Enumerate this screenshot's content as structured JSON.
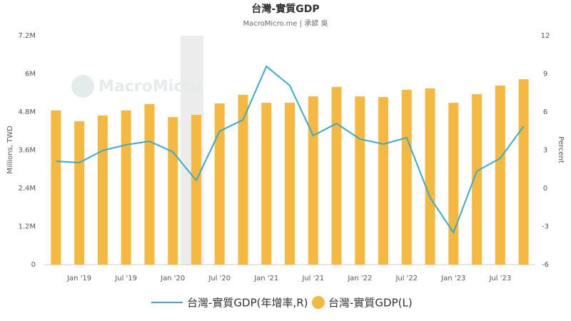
{
  "chart_data": {
    "type": "bar-line",
    "title": "台灣-實質GDP",
    "subtitle": "MacroMicro.me | 承諺 吳",
    "watermark": "MacroMicro",
    "ylabel": "Millions, TWD",
    "y2label": "Percent",
    "categories": [
      null,
      "Jan '19",
      null,
      "Jul '19",
      null,
      "Jan '20",
      null,
      "Jul '20",
      null,
      "Jan '21",
      null,
      "Jul '21",
      null,
      "Jan '22",
      null,
      "Jul '22",
      null,
      "Jan '23",
      null,
      "Jul '23",
      null
    ],
    "series": [
      {
        "name": "台灣-實質GDP(年增率,R)",
        "type": "line",
        "axis": "y2",
        "color": "#3aaacb",
        "values": [
          2.13,
          2.02,
          2.97,
          3.42,
          3.7,
          2.86,
          0.62,
          4.49,
          5.38,
          9.59,
          8.08,
          4.15,
          5.1,
          3.87,
          3.48,
          3.98,
          -0.73,
          -3.48,
          1.35,
          2.36,
          4.88
        ]
      },
      {
        "name": "台灣-實質GDP(L)",
        "type": "bar",
        "color": "#f5b942",
        "values": [
          4.85,
          4.51,
          4.69,
          4.85,
          5.05,
          4.64,
          4.71,
          5.07,
          5.34,
          5.09,
          5.09,
          5.29,
          5.59,
          5.29,
          5.27,
          5.5,
          5.54,
          5.09,
          5.36,
          5.63,
          5.83
        ]
      }
    ],
    "ylim": [
      0,
      7.2
    ],
    "yticks": [
      0,
      {
        "value": 1.2,
        "label": "1.2M"
      },
      {
        "value": 2.4,
        "label": "2.4M"
      },
      {
        "value": 3.6,
        "label": "3.6M"
      },
      {
        "value": 4.8,
        "label": "4.8M"
      },
      {
        "value": 6,
        "label": "6M"
      },
      {
        "value": 7.2,
        "label": "7.2M"
      }
    ],
    "y2lim": [
      -6,
      12
    ],
    "y2ticks": [
      -6,
      -3,
      0,
      3,
      6,
      9,
      12
    ]
  }
}
